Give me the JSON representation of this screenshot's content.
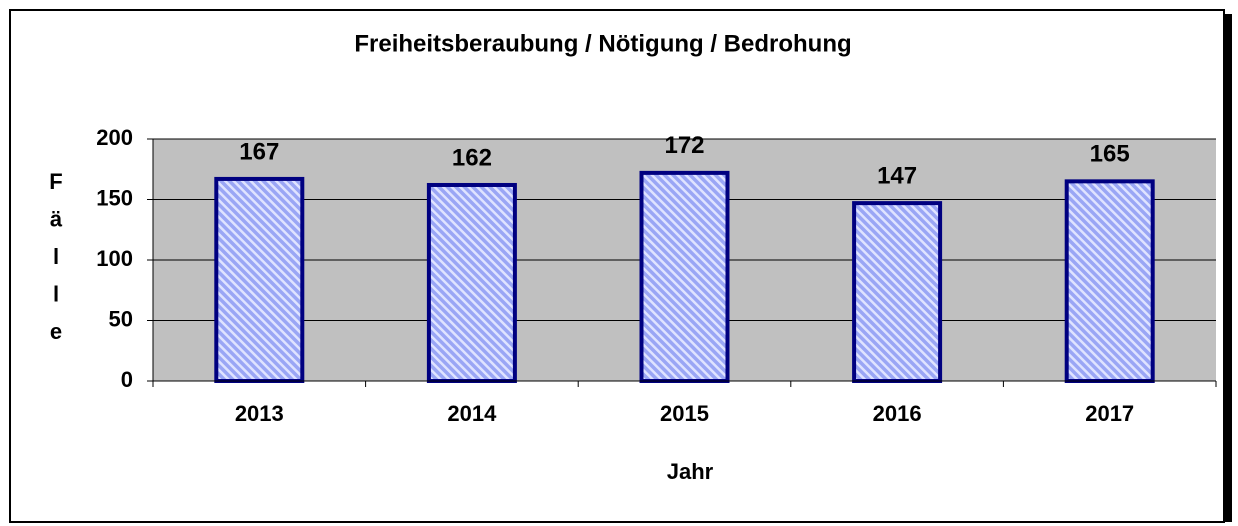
{
  "chart_data": {
    "type": "bar",
    "title": "Freiheitsberaubung / Nötigung / Bedrohung",
    "x_label": "Jahr",
    "y_label": "Fälle",
    "categories": [
      "2013",
      "2014",
      "2015",
      "2016",
      "2017"
    ],
    "values": [
      167,
      162,
      172,
      147,
      165
    ],
    "color": "#9aa6f5",
    "edge_color": "#000080",
    "plot_background": "#c0c0c0",
    "ylim": [
      0,
      200
    ],
    "yticks": [
      0,
      50,
      100,
      150,
      200
    ],
    "grid": true
  }
}
